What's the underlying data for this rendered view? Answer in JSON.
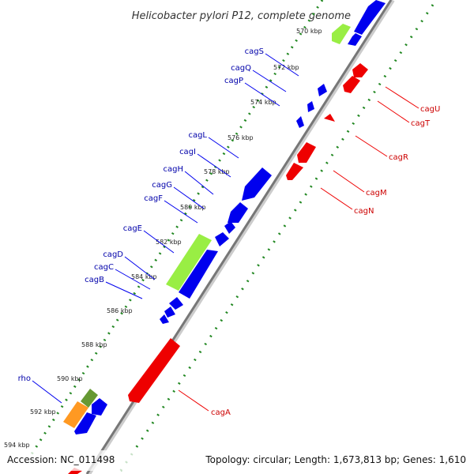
{
  "title": "Helicobacter pylori P12, complete genome",
  "footer": {
    "accession": "Accession: NC_011498",
    "summary": "Topology: circular; Length: 1,673,813 bp; Genes: 1,610"
  },
  "ticks": [
    "570 kbp",
    "572 kbp",
    "574 kbp",
    "576 kbp",
    "578 kbp",
    "580 kbp",
    "582 kbp",
    "584 kbp",
    "586 kbp",
    "588 kbp",
    "590 kbp",
    "592 kbp",
    "594 kbp"
  ],
  "labels": {
    "left": [
      "cagS",
      "cagQ",
      "cagP",
      "cagL",
      "cagI",
      "cagH",
      "cagG",
      "cagF",
      "cagE",
      "cagD",
      "cagC",
      "cagB",
      "rho"
    ],
    "right": [
      "cagU",
      "cagT",
      "cagR",
      "cagM",
      "cagN",
      "cagA"
    ]
  },
  "colors": {
    "forward_cds": "#0000ee",
    "reverse_cds": "#ee0000",
    "highlight_green": "#99ee44",
    "olive_green": "#669933",
    "orange": "#ff9922",
    "backbone": "#888888",
    "dotted_track": "#228822",
    "left_label": "#0000aa",
    "right_label": "#cc0000"
  }
}
